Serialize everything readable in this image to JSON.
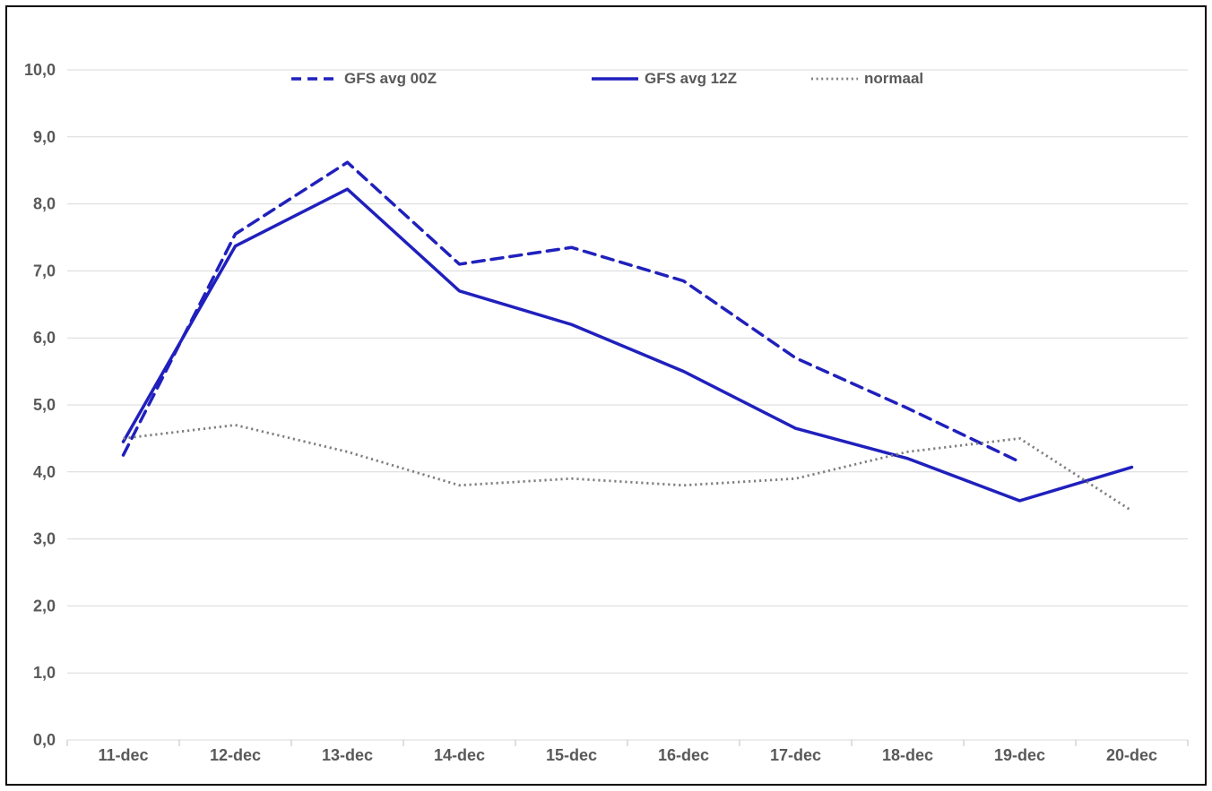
{
  "chart_data": {
    "type": "line",
    "title": "",
    "xlabel": "",
    "ylabel": "",
    "categories": [
      "11-dec",
      "12-dec",
      "13-dec",
      "14-dec",
      "15-dec",
      "16-dec",
      "17-dec",
      "18-dec",
      "19-dec",
      "20-dec"
    ],
    "series": [
      {
        "name": "GFS avg 00Z",
        "style": "dashed",
        "color": "#2020bd",
        "values": [
          4.25,
          7.55,
          8.62,
          7.1,
          7.35,
          6.85,
          5.7,
          4.95,
          4.15,
          null
        ]
      },
      {
        "name": "GFS avg 12Z",
        "style": "solid",
        "color": "#2020bd",
        "values": [
          4.45,
          7.37,
          8.22,
          6.7,
          6.2,
          5.5,
          4.65,
          4.2,
          3.57,
          4.07
        ]
      },
      {
        "name": "normaal",
        "style": "dotted",
        "color": "#7f7f7f",
        "values": [
          4.5,
          4.7,
          4.3,
          3.8,
          3.9,
          3.8,
          3.9,
          4.3,
          4.5,
          3.42
        ]
      }
    ],
    "ylim": [
      0,
      10
    ],
    "ytick_step": 1,
    "ytick_labels": [
      "0,0",
      "1,0",
      "2,0",
      "3,0",
      "4,0",
      "5,0",
      "6,0",
      "7,0",
      "8,0",
      "9,0",
      "10,0"
    ],
    "grid": true,
    "legend_position": "top",
    "gridline_color": "#d9d9d9",
    "tick_color": "#bfbfbf",
    "axis_label_color": "#595959"
  }
}
